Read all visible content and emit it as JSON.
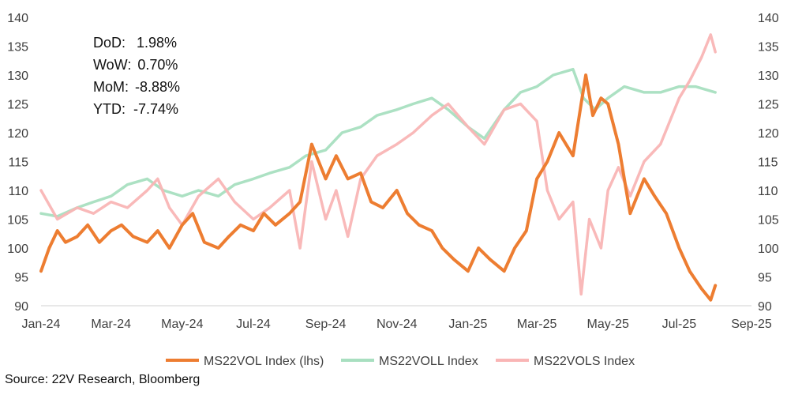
{
  "stats": [
    {
      "label": "DoD:",
      "value": "1.98%"
    },
    {
      "label": "WoW:",
      "value": "0.70%"
    },
    {
      "label": "MoM:",
      "value": "-8.88%"
    },
    {
      "label": "YTD:",
      "value": "-7.74%"
    }
  ],
  "source": "Source: 22V Research, Bloomberg",
  "chart_data": {
    "type": "line",
    "x_axis": {
      "ticks": [
        "Jan-24",
        "Mar-24",
        "May-24",
        "Jul-24",
        "Sep-24",
        "Nov-24",
        "Jan-25",
        "Mar-25",
        "May-25",
        "Jul-25",
        "Sep-25"
      ],
      "range": [
        "2024-01-01",
        "2025-09-01"
      ]
    },
    "y_left": {
      "ticks": [
        "140",
        "135",
        "130",
        "125",
        "120",
        "115",
        "110",
        "105",
        "100",
        "95",
        "90"
      ],
      "ylim": [
        90,
        140
      ]
    },
    "y_right": {
      "ticks": [
        "140",
        "135",
        "130",
        "125",
        "120",
        "115",
        "110",
        "105",
        "100",
        "95",
        "90"
      ],
      "ylim": [
        90,
        140
      ]
    },
    "grid": false,
    "legend_placement": "bottom",
    "series": [
      {
        "name": "MS22VOL Index (lhs)",
        "color": "#ED7D31",
        "points": [
          [
            "2024-01-01",
            96
          ],
          [
            "2024-01-08",
            100
          ],
          [
            "2024-01-15",
            103
          ],
          [
            "2024-01-22",
            101
          ],
          [
            "2024-02-01",
            102
          ],
          [
            "2024-02-10",
            104
          ],
          [
            "2024-02-20",
            101
          ],
          [
            "2024-03-01",
            103
          ],
          [
            "2024-03-10",
            104
          ],
          [
            "2024-03-20",
            102
          ],
          [
            "2024-04-01",
            101
          ],
          [
            "2024-04-10",
            103
          ],
          [
            "2024-04-20",
            100
          ],
          [
            "2024-05-01",
            104
          ],
          [
            "2024-05-10",
            106
          ],
          [
            "2024-05-20",
            101
          ],
          [
            "2024-06-01",
            100
          ],
          [
            "2024-06-10",
            102
          ],
          [
            "2024-06-20",
            104
          ],
          [
            "2024-07-01",
            103
          ],
          [
            "2024-07-10",
            106
          ],
          [
            "2024-07-20",
            104
          ],
          [
            "2024-08-01",
            106
          ],
          [
            "2024-08-10",
            108
          ],
          [
            "2024-08-20",
            118
          ],
          [
            "2024-09-01",
            112
          ],
          [
            "2024-09-10",
            116
          ],
          [
            "2024-09-20",
            112
          ],
          [
            "2024-10-01",
            113
          ],
          [
            "2024-10-10",
            108
          ],
          [
            "2024-10-20",
            107
          ],
          [
            "2024-11-01",
            110
          ],
          [
            "2024-11-10",
            106
          ],
          [
            "2024-11-20",
            104
          ],
          [
            "2024-12-01",
            103
          ],
          [
            "2024-12-10",
            100
          ],
          [
            "2024-12-20",
            98
          ],
          [
            "2025-01-01",
            96
          ],
          [
            "2025-01-10",
            100
          ],
          [
            "2025-01-20",
            98
          ],
          [
            "2025-02-01",
            96
          ],
          [
            "2025-02-10",
            100
          ],
          [
            "2025-02-20",
            103
          ],
          [
            "2025-03-01",
            112
          ],
          [
            "2025-03-10",
            115
          ],
          [
            "2025-03-20",
            120
          ],
          [
            "2025-04-01",
            116
          ],
          [
            "2025-04-08",
            125
          ],
          [
            "2025-04-12",
            130
          ],
          [
            "2025-04-18",
            123
          ],
          [
            "2025-04-25",
            126
          ],
          [
            "2025-05-01",
            125
          ],
          [
            "2025-05-10",
            118
          ],
          [
            "2025-05-20",
            106
          ],
          [
            "2025-06-01",
            112
          ],
          [
            "2025-06-10",
            109
          ],
          [
            "2025-06-20",
            106
          ],
          [
            "2025-07-01",
            100
          ],
          [
            "2025-07-10",
            96
          ],
          [
            "2025-07-20",
            93
          ],
          [
            "2025-07-28",
            91
          ],
          [
            "2025-08-01",
            93.5
          ]
        ]
      },
      {
        "name": "MS22VOLL Index",
        "color": "#A8DFC0",
        "points": [
          [
            "2024-01-01",
            106
          ],
          [
            "2024-01-15",
            105.5
          ],
          [
            "2024-02-01",
            107
          ],
          [
            "2024-02-15",
            108
          ],
          [
            "2024-03-01",
            109
          ],
          [
            "2024-03-15",
            111
          ],
          [
            "2024-04-01",
            112
          ],
          [
            "2024-04-15",
            110
          ],
          [
            "2024-05-01",
            109
          ],
          [
            "2024-05-15",
            110
          ],
          [
            "2024-06-01",
            109
          ],
          [
            "2024-06-15",
            111
          ],
          [
            "2024-07-01",
            112
          ],
          [
            "2024-07-15",
            113
          ],
          [
            "2024-08-01",
            114
          ],
          [
            "2024-08-15",
            116
          ],
          [
            "2024-09-01",
            117
          ],
          [
            "2024-09-15",
            120
          ],
          [
            "2024-10-01",
            121
          ],
          [
            "2024-10-15",
            123
          ],
          [
            "2024-11-01",
            124
          ],
          [
            "2024-11-15",
            125
          ],
          [
            "2024-12-01",
            126
          ],
          [
            "2024-12-15",
            124
          ],
          [
            "2025-01-01",
            121
          ],
          [
            "2025-01-15",
            119
          ],
          [
            "2025-02-01",
            124
          ],
          [
            "2025-02-15",
            127
          ],
          [
            "2025-03-01",
            128
          ],
          [
            "2025-03-15",
            130
          ],
          [
            "2025-04-01",
            131
          ],
          [
            "2025-04-10",
            126
          ],
          [
            "2025-04-20",
            124
          ],
          [
            "2025-05-01",
            126
          ],
          [
            "2025-05-15",
            128
          ],
          [
            "2025-06-01",
            127
          ],
          [
            "2025-06-15",
            127
          ],
          [
            "2025-07-01",
            128
          ],
          [
            "2025-07-15",
            128
          ],
          [
            "2025-08-01",
            127
          ]
        ]
      },
      {
        "name": "MS22VOLS Index",
        "color": "#F9B5B5",
        "points": [
          [
            "2024-01-01",
            110
          ],
          [
            "2024-01-15",
            105
          ],
          [
            "2024-02-01",
            107
          ],
          [
            "2024-02-15",
            106
          ],
          [
            "2024-03-01",
            108
          ],
          [
            "2024-03-15",
            107
          ],
          [
            "2024-04-01",
            110
          ],
          [
            "2024-04-10",
            112
          ],
          [
            "2024-04-20",
            107
          ],
          [
            "2024-05-01",
            104
          ],
          [
            "2024-05-15",
            109
          ],
          [
            "2024-06-01",
            112
          ],
          [
            "2024-06-15",
            108
          ],
          [
            "2024-07-01",
            105
          ],
          [
            "2024-07-15",
            107
          ],
          [
            "2024-08-01",
            110
          ],
          [
            "2024-08-10",
            100
          ],
          [
            "2024-08-20",
            115
          ],
          [
            "2024-09-01",
            105
          ],
          [
            "2024-09-10",
            110
          ],
          [
            "2024-09-20",
            102
          ],
          [
            "2024-10-01",
            112
          ],
          [
            "2024-10-15",
            116
          ],
          [
            "2024-11-01",
            118
          ],
          [
            "2024-11-15",
            120
          ],
          [
            "2024-12-01",
            123
          ],
          [
            "2024-12-15",
            125
          ],
          [
            "2025-01-01",
            121
          ],
          [
            "2025-01-15",
            118
          ],
          [
            "2025-02-01",
            124
          ],
          [
            "2025-02-15",
            125
          ],
          [
            "2025-03-01",
            122
          ],
          [
            "2025-03-10",
            110
          ],
          [
            "2025-03-20",
            105
          ],
          [
            "2025-04-01",
            108
          ],
          [
            "2025-04-08",
            92
          ],
          [
            "2025-04-15",
            105
          ],
          [
            "2025-04-25",
            100
          ],
          [
            "2025-05-01",
            110
          ],
          [
            "2025-05-10",
            114
          ],
          [
            "2025-05-20",
            109
          ],
          [
            "2025-06-01",
            115
          ],
          [
            "2025-06-15",
            118
          ],
          [
            "2025-07-01",
            126
          ],
          [
            "2025-07-10",
            129
          ],
          [
            "2025-07-20",
            133
          ],
          [
            "2025-07-28",
            137
          ],
          [
            "2025-08-01",
            134
          ]
        ]
      }
    ]
  }
}
